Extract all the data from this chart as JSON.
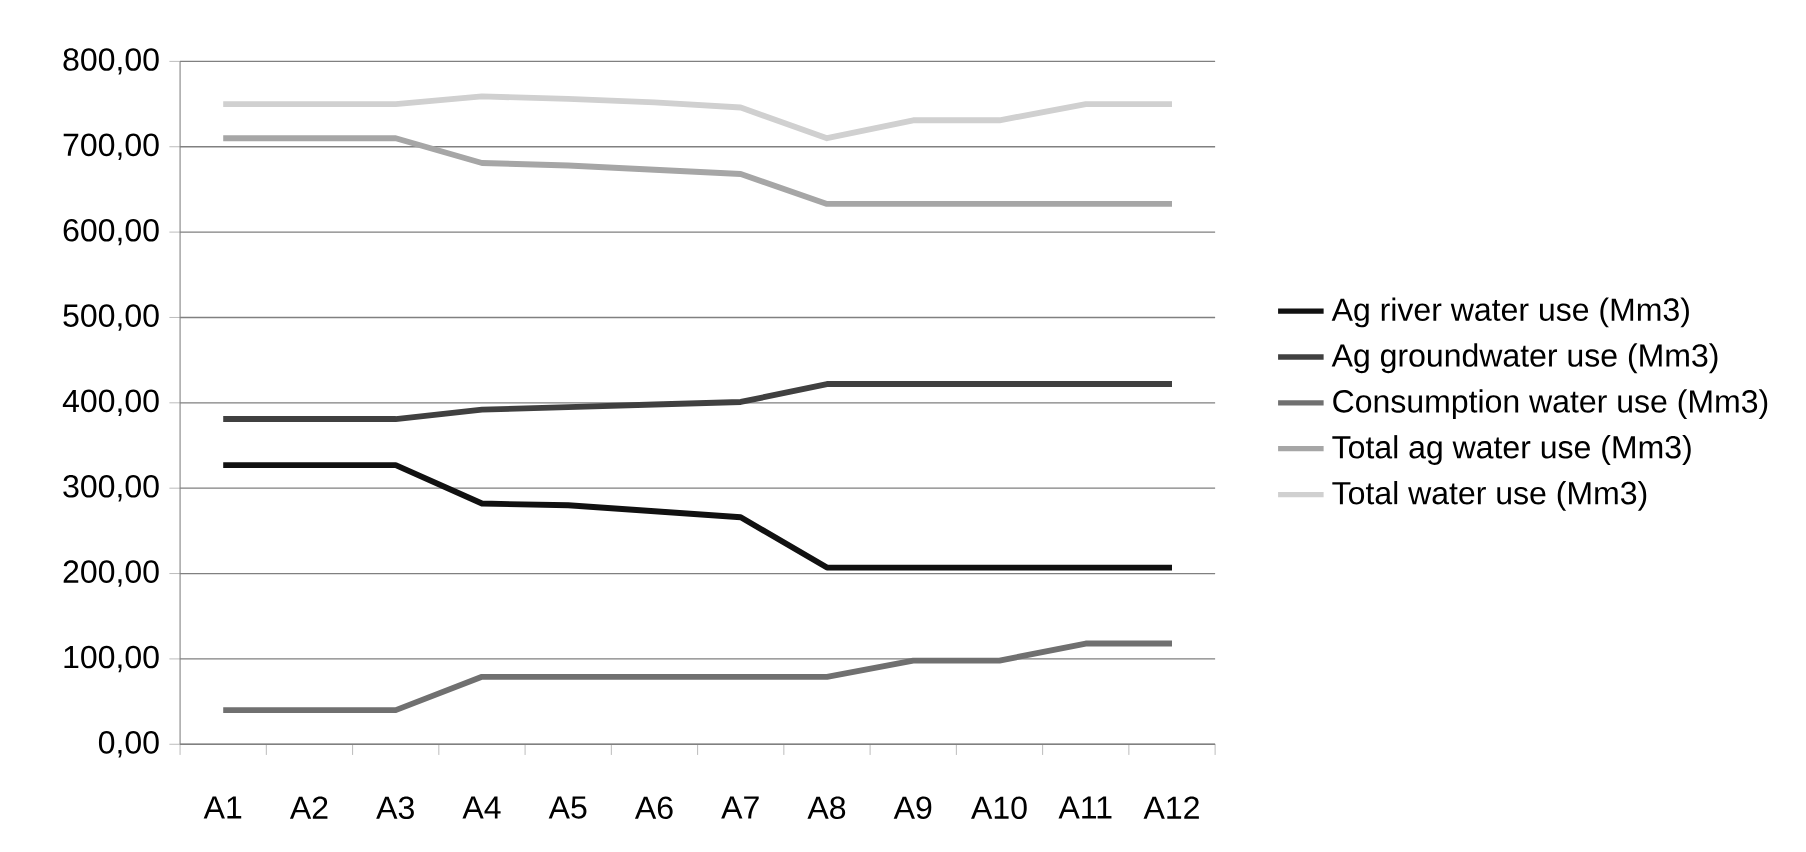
{
  "chart_data": {
    "type": "line",
    "categories": [
      "A1",
      "A2",
      "A3",
      "A4",
      "A5",
      "A6",
      "A7",
      "A8",
      "A9",
      "A10",
      "A11",
      "A12"
    ],
    "ylim": [
      0,
      800
    ],
    "yticks": [
      {
        "value": 0,
        "label": "0,00"
      },
      {
        "value": 100,
        "label": "100,00"
      },
      {
        "value": 200,
        "label": "200,00"
      },
      {
        "value": 300,
        "label": "300,00"
      },
      {
        "value": 400,
        "label": "400,00"
      },
      {
        "value": 500,
        "label": "500,00"
      },
      {
        "value": 600,
        "label": "600,00"
      },
      {
        "value": 700,
        "label": "700,00"
      },
      {
        "value": 800,
        "label": "800,00"
      }
    ],
    "grid": "y",
    "legend": "right",
    "marker": "none",
    "line_style": "solid",
    "series": [
      {
        "name": "Ag river water use (Mm3)",
        "color": "#111111",
        "values": [
          327,
          327,
          327,
          282,
          280,
          273,
          266,
          207,
          207,
          207,
          207,
          207
        ]
      },
      {
        "name": "Ag groundwater use (Mm3)",
        "color": "#404040",
        "values": [
          381,
          381,
          381,
          392,
          395,
          398,
          401,
          422,
          422,
          422,
          422,
          422
        ]
      },
      {
        "name": "Consumption water use (Mm3)",
        "color": "#707070",
        "values": [
          40,
          40,
          40,
          79,
          79,
          79,
          79,
          79,
          98,
          98,
          118,
          118
        ]
      },
      {
        "name": "Total ag water use (Mm3)",
        "color": "#a6a6a6",
        "values": [
          710,
          710,
          710,
          681,
          678,
          673,
          668,
          633,
          633,
          633,
          633,
          633
        ]
      },
      {
        "name": "Total water use (Mm3)",
        "color": "#d0d0d0",
        "values": [
          750,
          750,
          750,
          759,
          756,
          752,
          746,
          710,
          731,
          731,
          750,
          750
        ]
      }
    ]
  }
}
